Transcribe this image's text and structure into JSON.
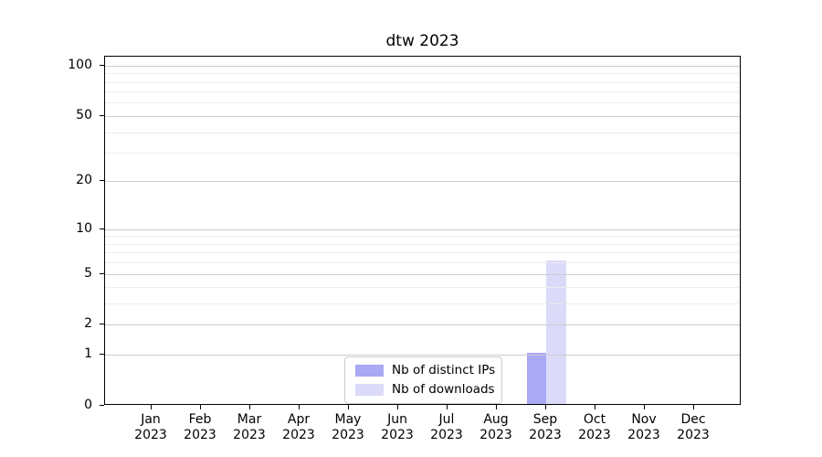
{
  "chart_data": {
    "type": "bar",
    "title": "dtw 2023",
    "scale": "log1p",
    "months": [
      "Jan",
      "Feb",
      "Mar",
      "Apr",
      "May",
      "Jun",
      "Jul",
      "Aug",
      "Sep",
      "Oct",
      "Nov",
      "Dec"
    ],
    "year": "2023",
    "series": [
      {
        "name": "Nb of distinct IPs",
        "color": "#a9a9f4",
        "values": [
          0,
          0,
          0,
          0,
          0,
          0,
          0,
          0,
          1,
          0,
          0,
          0
        ]
      },
      {
        "name": "Nb of downloads",
        "color": "#dbdaf9",
        "values": [
          0,
          0,
          0,
          0,
          0,
          0,
          0,
          0,
          6,
          0,
          0,
          0
        ]
      }
    ],
    "y_ticks": [
      0,
      1,
      2,
      5,
      10,
      20,
      50,
      100
    ],
    "y_minor_gridlines": [
      3,
      4,
      6,
      7,
      8,
      9,
      30,
      40,
      60,
      70,
      80,
      90
    ],
    "ylim": [
      0,
      113
    ],
    "xlabel": "",
    "ylabel": "",
    "grid": true,
    "legend_position": "lower center"
  }
}
